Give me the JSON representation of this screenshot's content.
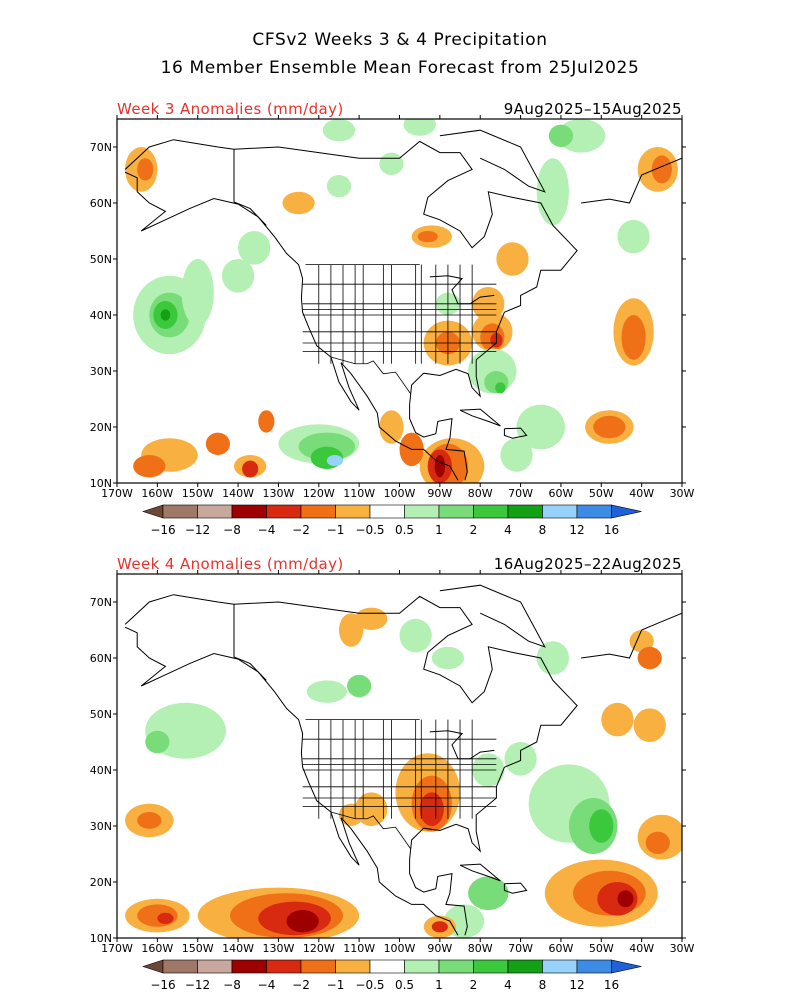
{
  "header": {
    "title_line1": "CFSv2 Weeks 3 & 4 Precipitation",
    "title_line2": "16 Member Ensemble Mean Forecast from 25Jul2025"
  },
  "panels": [
    {
      "label": "Week 3 Anomalies (mm/day)",
      "dates": "9Aug2025–15Aug2025"
    },
    {
      "label": "Week 4 Anomalies (mm/day)",
      "dates": "16Aug2025–22Aug2025"
    }
  ],
  "axes": {
    "lat_labels": [
      "70N",
      "60N",
      "50N",
      "40N",
      "30N",
      "20N",
      "10N"
    ],
    "lon_labels": [
      "170W",
      "160W",
      "150W",
      "140W",
      "130W",
      "120W",
      "110W",
      "100W",
      "90W",
      "80W",
      "70W",
      "60W",
      "50W",
      "40W",
      "30W"
    ]
  },
  "colorbar": {
    "labels": [
      "−16",
      "−12",
      "−8",
      "−4",
      "−2",
      "−1",
      "−0.5",
      "0.5",
      "1",
      "2",
      "4",
      "8",
      "12",
      "16"
    ],
    "colors": [
      "#6e4636",
      "#a07868",
      "#c8a89c",
      "#9e0000",
      "#d82a10",
      "#f07018",
      "#f8b040",
      "#ffffff",
      "#b4f0b4",
      "#78dc78",
      "#3cc83c",
      "#14a014",
      "#96d2fa",
      "#3c8ce6",
      "#2060d8"
    ]
  }
}
